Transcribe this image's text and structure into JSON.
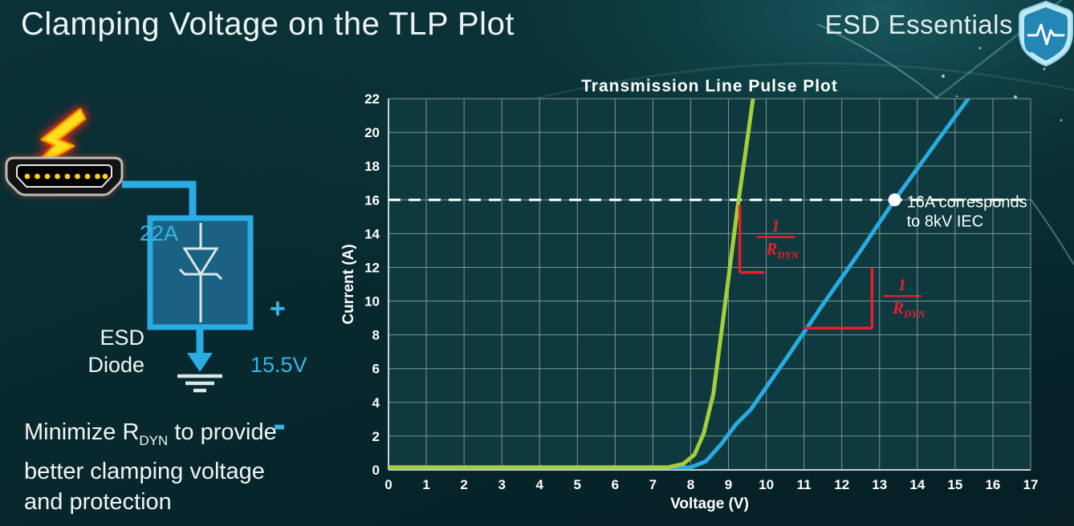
{
  "slide": {
    "title": "Clamping Voltage on the TLP Plot",
    "brand": "ESD Essentials",
    "note": {
      "line1_pre": "Minimize R",
      "line1_sub": "DYN",
      "line1_post": " to provide",
      "line2": "better clamping voltage",
      "line3": "and protection"
    }
  },
  "diagram": {
    "surge_current_label": "22A",
    "device_name_line1": "ESD",
    "device_name_line2": "Diode",
    "polarity_plus": "+",
    "polarity_minus": "-",
    "clamp_voltage_label": "15.5V",
    "accent_color": "#2aabe2",
    "icons": {
      "strike": "lightning-bolt-icon",
      "port": "hdmi-connector-icon",
      "device": "zener-diode-icon",
      "ground": "ground-symbol-icon",
      "brand": "shield-pulse-icon"
    }
  },
  "chart_data": {
    "type": "line",
    "title": "Transmission Line Pulse Plot",
    "xlabel": "Voltage (V)",
    "ylabel": "Current (A)",
    "xlim": [
      0,
      17
    ],
    "ylim": [
      0,
      22
    ],
    "xticks": [
      0,
      1,
      2,
      3,
      4,
      5,
      6,
      7,
      8,
      9,
      10,
      11,
      12,
      13,
      14,
      15,
      16,
      17
    ],
    "yticks": [
      0,
      2,
      4,
      6,
      8,
      10,
      12,
      14,
      16,
      18,
      20,
      22
    ],
    "grid": true,
    "legend": "none",
    "series": [
      {
        "name": "high-rdyn-device-blue",
        "color": "#29abe2",
        "points": [
          [
            0,
            0.15
          ],
          [
            8.0,
            0.15
          ],
          [
            8.4,
            0.5
          ],
          [
            8.8,
            1.5
          ],
          [
            9.2,
            2.7
          ],
          [
            9.6,
            3.6
          ],
          [
            10.5,
            6.5
          ],
          [
            11.5,
            9.8
          ],
          [
            12.5,
            13.0
          ],
          [
            13.4,
            16.0
          ],
          [
            14.5,
            19.4
          ],
          [
            15.35,
            22
          ]
        ]
      },
      {
        "name": "low-rdyn-device-green",
        "color": "#a6ce39",
        "points": [
          [
            0,
            0.15
          ],
          [
            7.4,
            0.15
          ],
          [
            7.8,
            0.35
          ],
          [
            8.1,
            0.9
          ],
          [
            8.35,
            2.2
          ],
          [
            8.6,
            4.5
          ],
          [
            8.95,
            10.5
          ],
          [
            9.25,
            15.7
          ],
          [
            9.45,
            18.8
          ],
          [
            9.65,
            22
          ]
        ]
      }
    ],
    "reference_line": {
      "y": 16,
      "style": "dashed",
      "color": "#ffffff"
    },
    "marker": {
      "x": 13.4,
      "y": 16,
      "color": "#ffffff",
      "label_line1": "16A corresponds",
      "label_line2": "to 8kV IEC"
    },
    "slope_annotations": [
      {
        "name": "rdyn-slope-green",
        "color": "#ec1c2e",
        "segments": [
          [
            9.3,
            15.7,
            9.3,
            11.7
          ],
          [
            9.3,
            11.7,
            9.95,
            11.7
          ]
        ],
        "fraction": {
          "x": 10.25,
          "y": 13.8,
          "numerator": "1",
          "denominator": "R",
          "denominator_sub": "DYN"
        }
      },
      {
        "name": "rdyn-slope-blue",
        "color": "#ec1c2e",
        "segments": [
          [
            11.0,
            8.4,
            12.8,
            8.4
          ],
          [
            12.8,
            8.4,
            12.8,
            12.0
          ]
        ],
        "fraction": {
          "x": 13.6,
          "y": 10.3,
          "numerator": "1",
          "denominator": "R",
          "denominator_sub": "DYN"
        }
      }
    ]
  }
}
